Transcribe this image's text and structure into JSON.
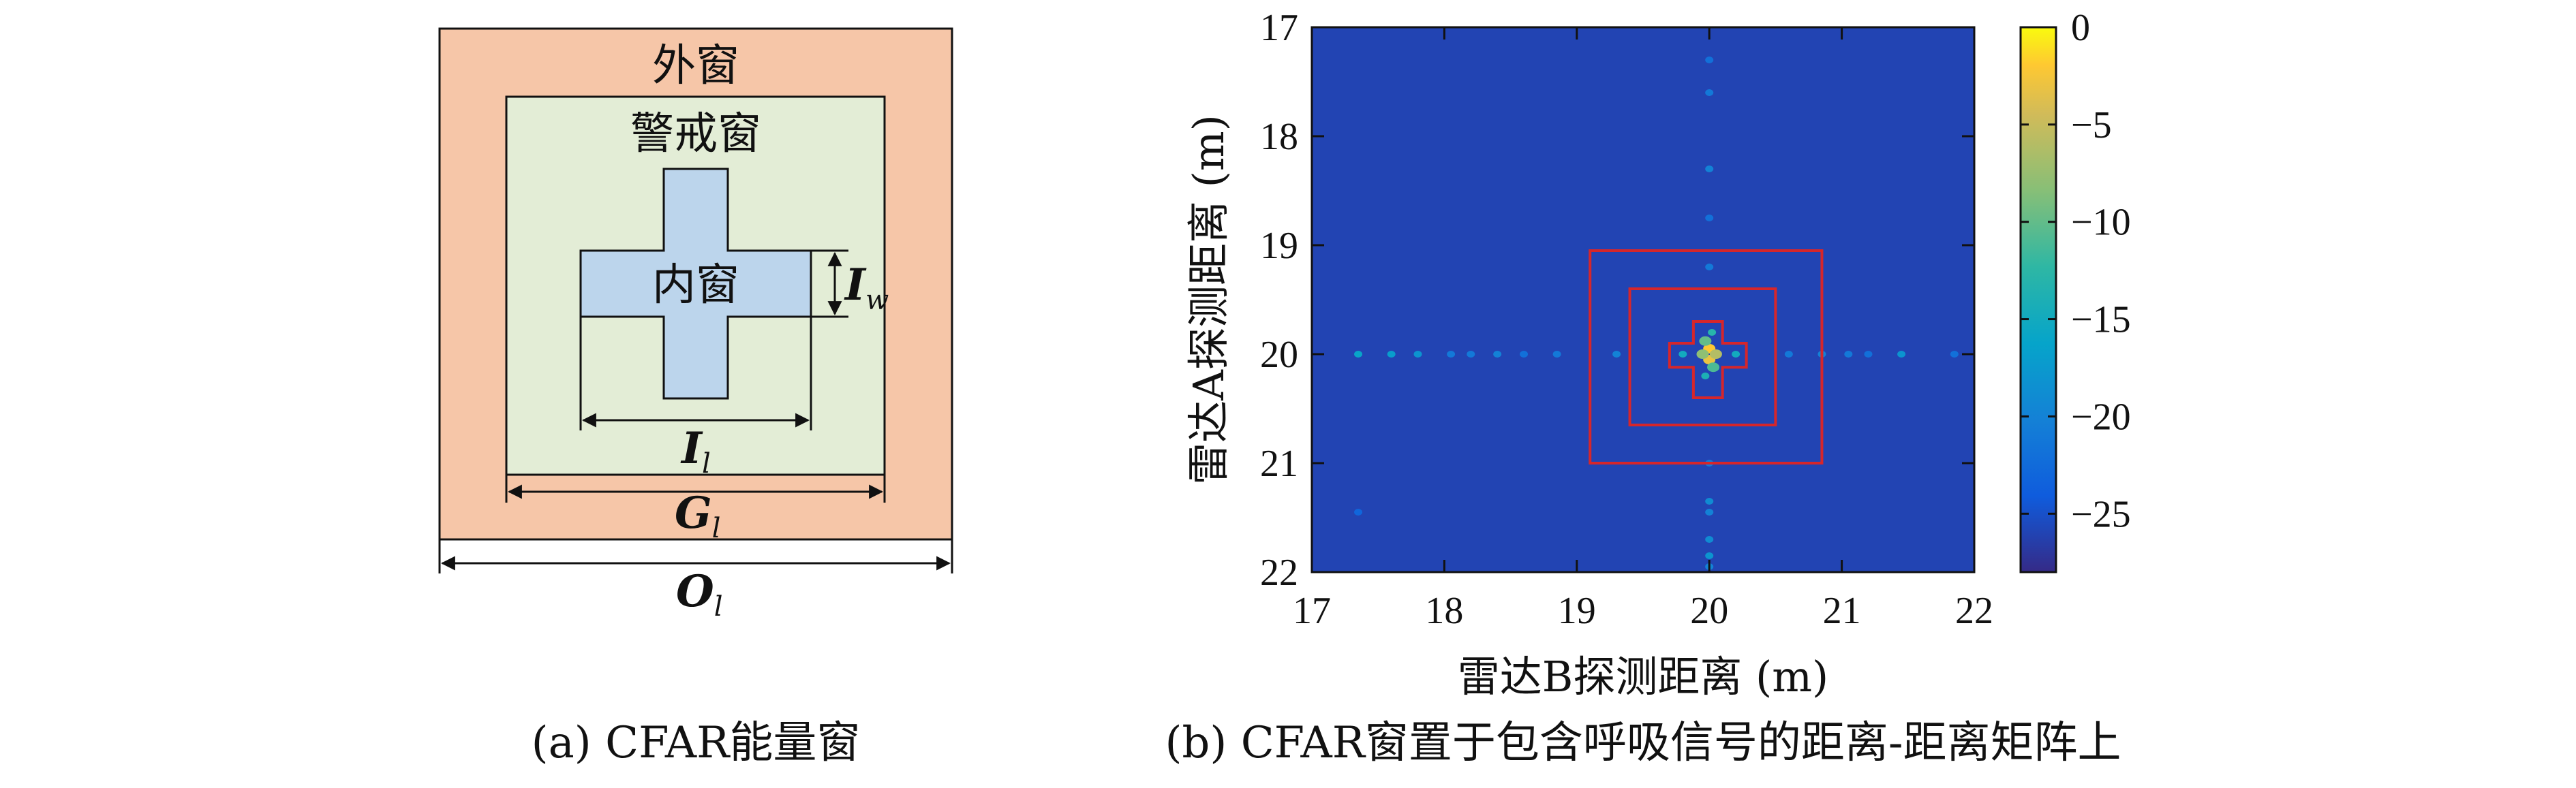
{
  "panel_a": {
    "caption": "(a) CFAR能量窗",
    "outer_label": "外窗",
    "guard_label": "警戒窗",
    "inner_label": "内窗",
    "dim_iw": {
      "main": "I",
      "sub": "w"
    },
    "dim_il": {
      "main": "I",
      "sub": "l"
    },
    "dim_gl": {
      "main": "G",
      "sub": "l"
    },
    "dim_ol": {
      "main": "O",
      "sub": "l"
    },
    "colors": {
      "outer": "#f6c6a8",
      "guard": "#e3edd6",
      "inner": "#bcd5ec"
    }
  },
  "panel_b": {
    "caption": "(b) CFAR窗置于包含呼吸信号的距离-距离矩阵上",
    "chart_data": {
      "type": "heatmap",
      "xlabel": "雷达B探测距离 (m)",
      "ylabel": "雷达A探测距离 (m)",
      "xlim": [
        17,
        22
      ],
      "ylim": [
        17,
        22
      ],
      "y_inverted": true,
      "x_ticks": [
        "17",
        "18",
        "19",
        "20",
        "21",
        "22"
      ],
      "y_ticks": [
        "17",
        "18",
        "19",
        "20",
        "21",
        "22"
      ],
      "colorbar": {
        "range": [
          -28,
          0
        ],
        "ticks": [
          "0",
          "−5",
          "−10",
          "−15",
          "−20",
          "−25"
        ],
        "tick_values": [
          0,
          -5,
          -10,
          -15,
          -20,
          -25
        ],
        "colormap": "parula"
      },
      "background_value": -26,
      "target_center": [
        20,
        20
      ],
      "cfar_windows": {
        "outer": {
          "x": [
            19.1,
            20.85
          ],
          "y": [
            19.05,
            21.0
          ]
        },
        "guard": {
          "x": [
            19.4,
            20.5
          ],
          "y": [
            19.4,
            20.65
          ]
        },
        "inner_cross": {
          "vertical": {
            "x": [
              19.88,
              20.1
            ],
            "y": [
              19.7,
              20.4
            ]
          },
          "horizontal": {
            "x": [
              19.7,
              20.28
            ],
            "y": [
              19.9,
              20.12
            ]
          }
        },
        "color": "#d6262b"
      },
      "spots": [
        {
          "x": 20.0,
          "y": 19.95,
          "v": -2
        },
        {
          "x": 20.0,
          "y": 20.05,
          "v": -3
        },
        {
          "x": 19.95,
          "y": 20.0,
          "v": -8
        },
        {
          "x": 20.05,
          "y": 20.0,
          "v": -6
        },
        {
          "x": 19.97,
          "y": 19.88,
          "v": -10
        },
        {
          "x": 20.03,
          "y": 20.12,
          "v": -11
        },
        {
          "x": 19.97,
          "y": 20.2,
          "v": -14
        },
        {
          "x": 20.02,
          "y": 19.8,
          "v": -13
        },
        {
          "x": 19.8,
          "y": 20.0,
          "v": -15
        },
        {
          "x": 20.2,
          "y": 20.0,
          "v": -15
        },
        {
          "x": 17.35,
          "y": 20.0,
          "v": -16
        },
        {
          "x": 17.6,
          "y": 20.0,
          "v": -17
        },
        {
          "x": 17.8,
          "y": 20.0,
          "v": -18
        },
        {
          "x": 18.05,
          "y": 20.0,
          "v": -21
        },
        {
          "x": 18.2,
          "y": 20.0,
          "v": -21
        },
        {
          "x": 18.4,
          "y": 20.0,
          "v": -20
        },
        {
          "x": 18.6,
          "y": 20.0,
          "v": -22
        },
        {
          "x": 18.85,
          "y": 20.0,
          "v": -21
        },
        {
          "x": 19.3,
          "y": 20.0,
          "v": -20
        },
        {
          "x": 20.6,
          "y": 20.0,
          "v": -21
        },
        {
          "x": 20.85,
          "y": 20.0,
          "v": -20
        },
        {
          "x": 21.05,
          "y": 20.0,
          "v": -21
        },
        {
          "x": 21.2,
          "y": 20.0,
          "v": -22
        },
        {
          "x": 21.45,
          "y": 20.0,
          "v": -18
        },
        {
          "x": 21.85,
          "y": 20.0,
          "v": -22
        },
        {
          "x": 20.0,
          "y": 17.3,
          "v": -22
        },
        {
          "x": 20.0,
          "y": 17.6,
          "v": -21
        },
        {
          "x": 20.0,
          "y": 18.3,
          "v": -20
        },
        {
          "x": 20.0,
          "y": 18.75,
          "v": -22
        },
        {
          "x": 20.0,
          "y": 19.2,
          "v": -21
        },
        {
          "x": 20.0,
          "y": 21.0,
          "v": -21
        },
        {
          "x": 20.0,
          "y": 21.35,
          "v": -19
        },
        {
          "x": 20.0,
          "y": 21.45,
          "v": -20
        },
        {
          "x": 20.0,
          "y": 21.7,
          "v": -19
        },
        {
          "x": 20.0,
          "y": 21.85,
          "v": -18
        },
        {
          "x": 20.0,
          "y": 21.95,
          "v": -20
        },
        {
          "x": 17.35,
          "y": 21.45,
          "v": -23
        }
      ]
    }
  }
}
